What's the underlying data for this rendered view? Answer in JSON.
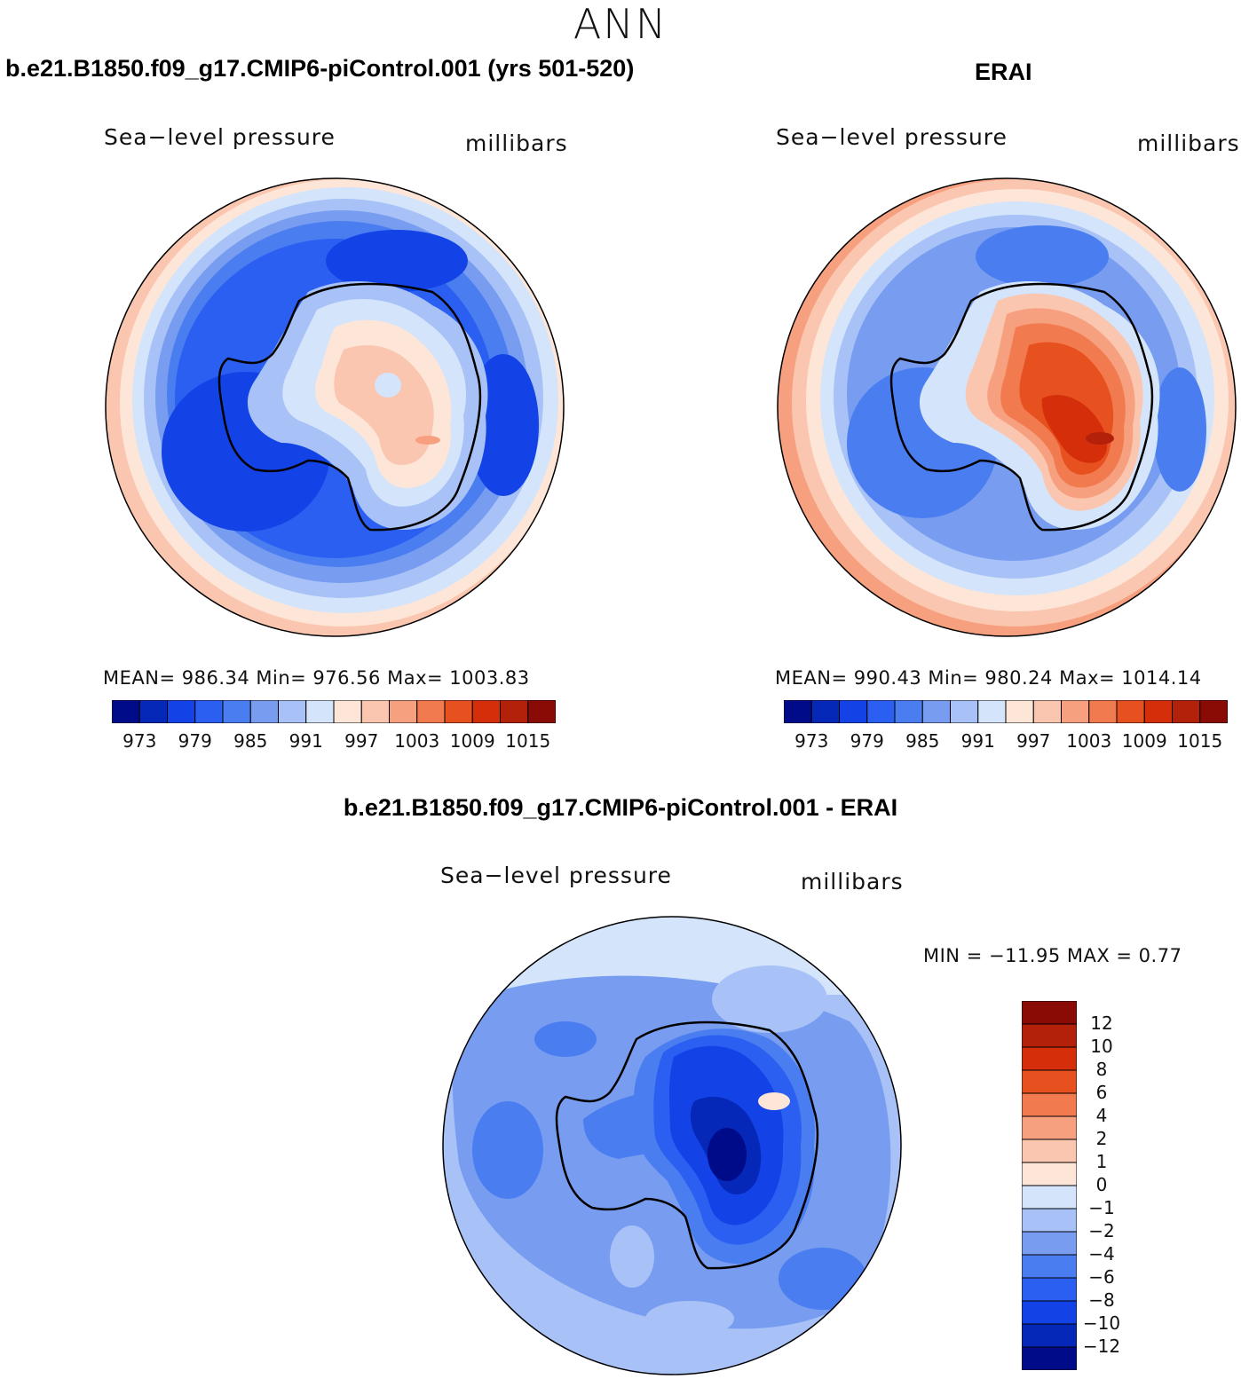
{
  "figure": {
    "title": "ANN",
    "difference_title": "b.e21.B1850.f09_g17.CMIP6-piControl.001 - ERAI"
  },
  "panels": [
    {
      "title": "b.e21.B1850.f09_g17.CMIP6-piControl.001 (yrs 501-520)",
      "variable": "Sea−level pressure",
      "units": "millibars",
      "stats": "MEAN=  986.34   Min=  976.56   Max=  1003.83",
      "colorbar": {
        "colors": [
          "#000b8a",
          "#0628b8",
          "#1343e6",
          "#2a5ff2",
          "#4a7ef0",
          "#789df0",
          "#a8c2f7",
          "#d3e4fb",
          "#fde6d8",
          "#fbc6b0",
          "#f7a07f",
          "#f27a4f",
          "#e7501f",
          "#d52e0b",
          "#b3210b",
          "#8a0a05"
        ],
        "labels": [
          "973",
          "979",
          "985",
          "991",
          "997",
          "1003",
          "1009",
          "1015"
        ]
      }
    },
    {
      "title": "ERAI",
      "variable": "Sea−level pressure",
      "units": "millibars",
      "stats": "MEAN=  990.43   Min=  980.24   Max=  1014.14",
      "colorbar": {
        "colors": [
          "#000b8a",
          "#0628b8",
          "#1343e6",
          "#2a5ff2",
          "#4a7ef0",
          "#789df0",
          "#a8c2f7",
          "#d3e4fb",
          "#fde6d8",
          "#fbc6b0",
          "#f7a07f",
          "#f27a4f",
          "#e7501f",
          "#d52e0b",
          "#b3210b",
          "#8a0a05"
        ],
        "labels": [
          "973",
          "979",
          "985",
          "991",
          "997",
          "1003",
          "1009",
          "1015"
        ]
      }
    },
    {
      "variable": "Sea−level pressure",
      "units": "millibars",
      "stats": "MIN = −11.95 MAX =    0.77",
      "colorbar": {
        "colors": [
          "#000b8a",
          "#0628b8",
          "#1343e6",
          "#2a5ff2",
          "#4a7ef0",
          "#789df0",
          "#a8c2f7",
          "#d3e4fb",
          "#fde6d8",
          "#fbc6b0",
          "#f7a07f",
          "#f27a4f",
          "#e7501f",
          "#d52e0b",
          "#b3210b",
          "#8a0a05"
        ],
        "labels": [
          "12",
          "10",
          "8",
          "6",
          "4",
          "2",
          "1",
          "0",
          "−1",
          "−2",
          "−4",
          "−6",
          "−8",
          "−10",
          "−12"
        ]
      }
    }
  ]
}
